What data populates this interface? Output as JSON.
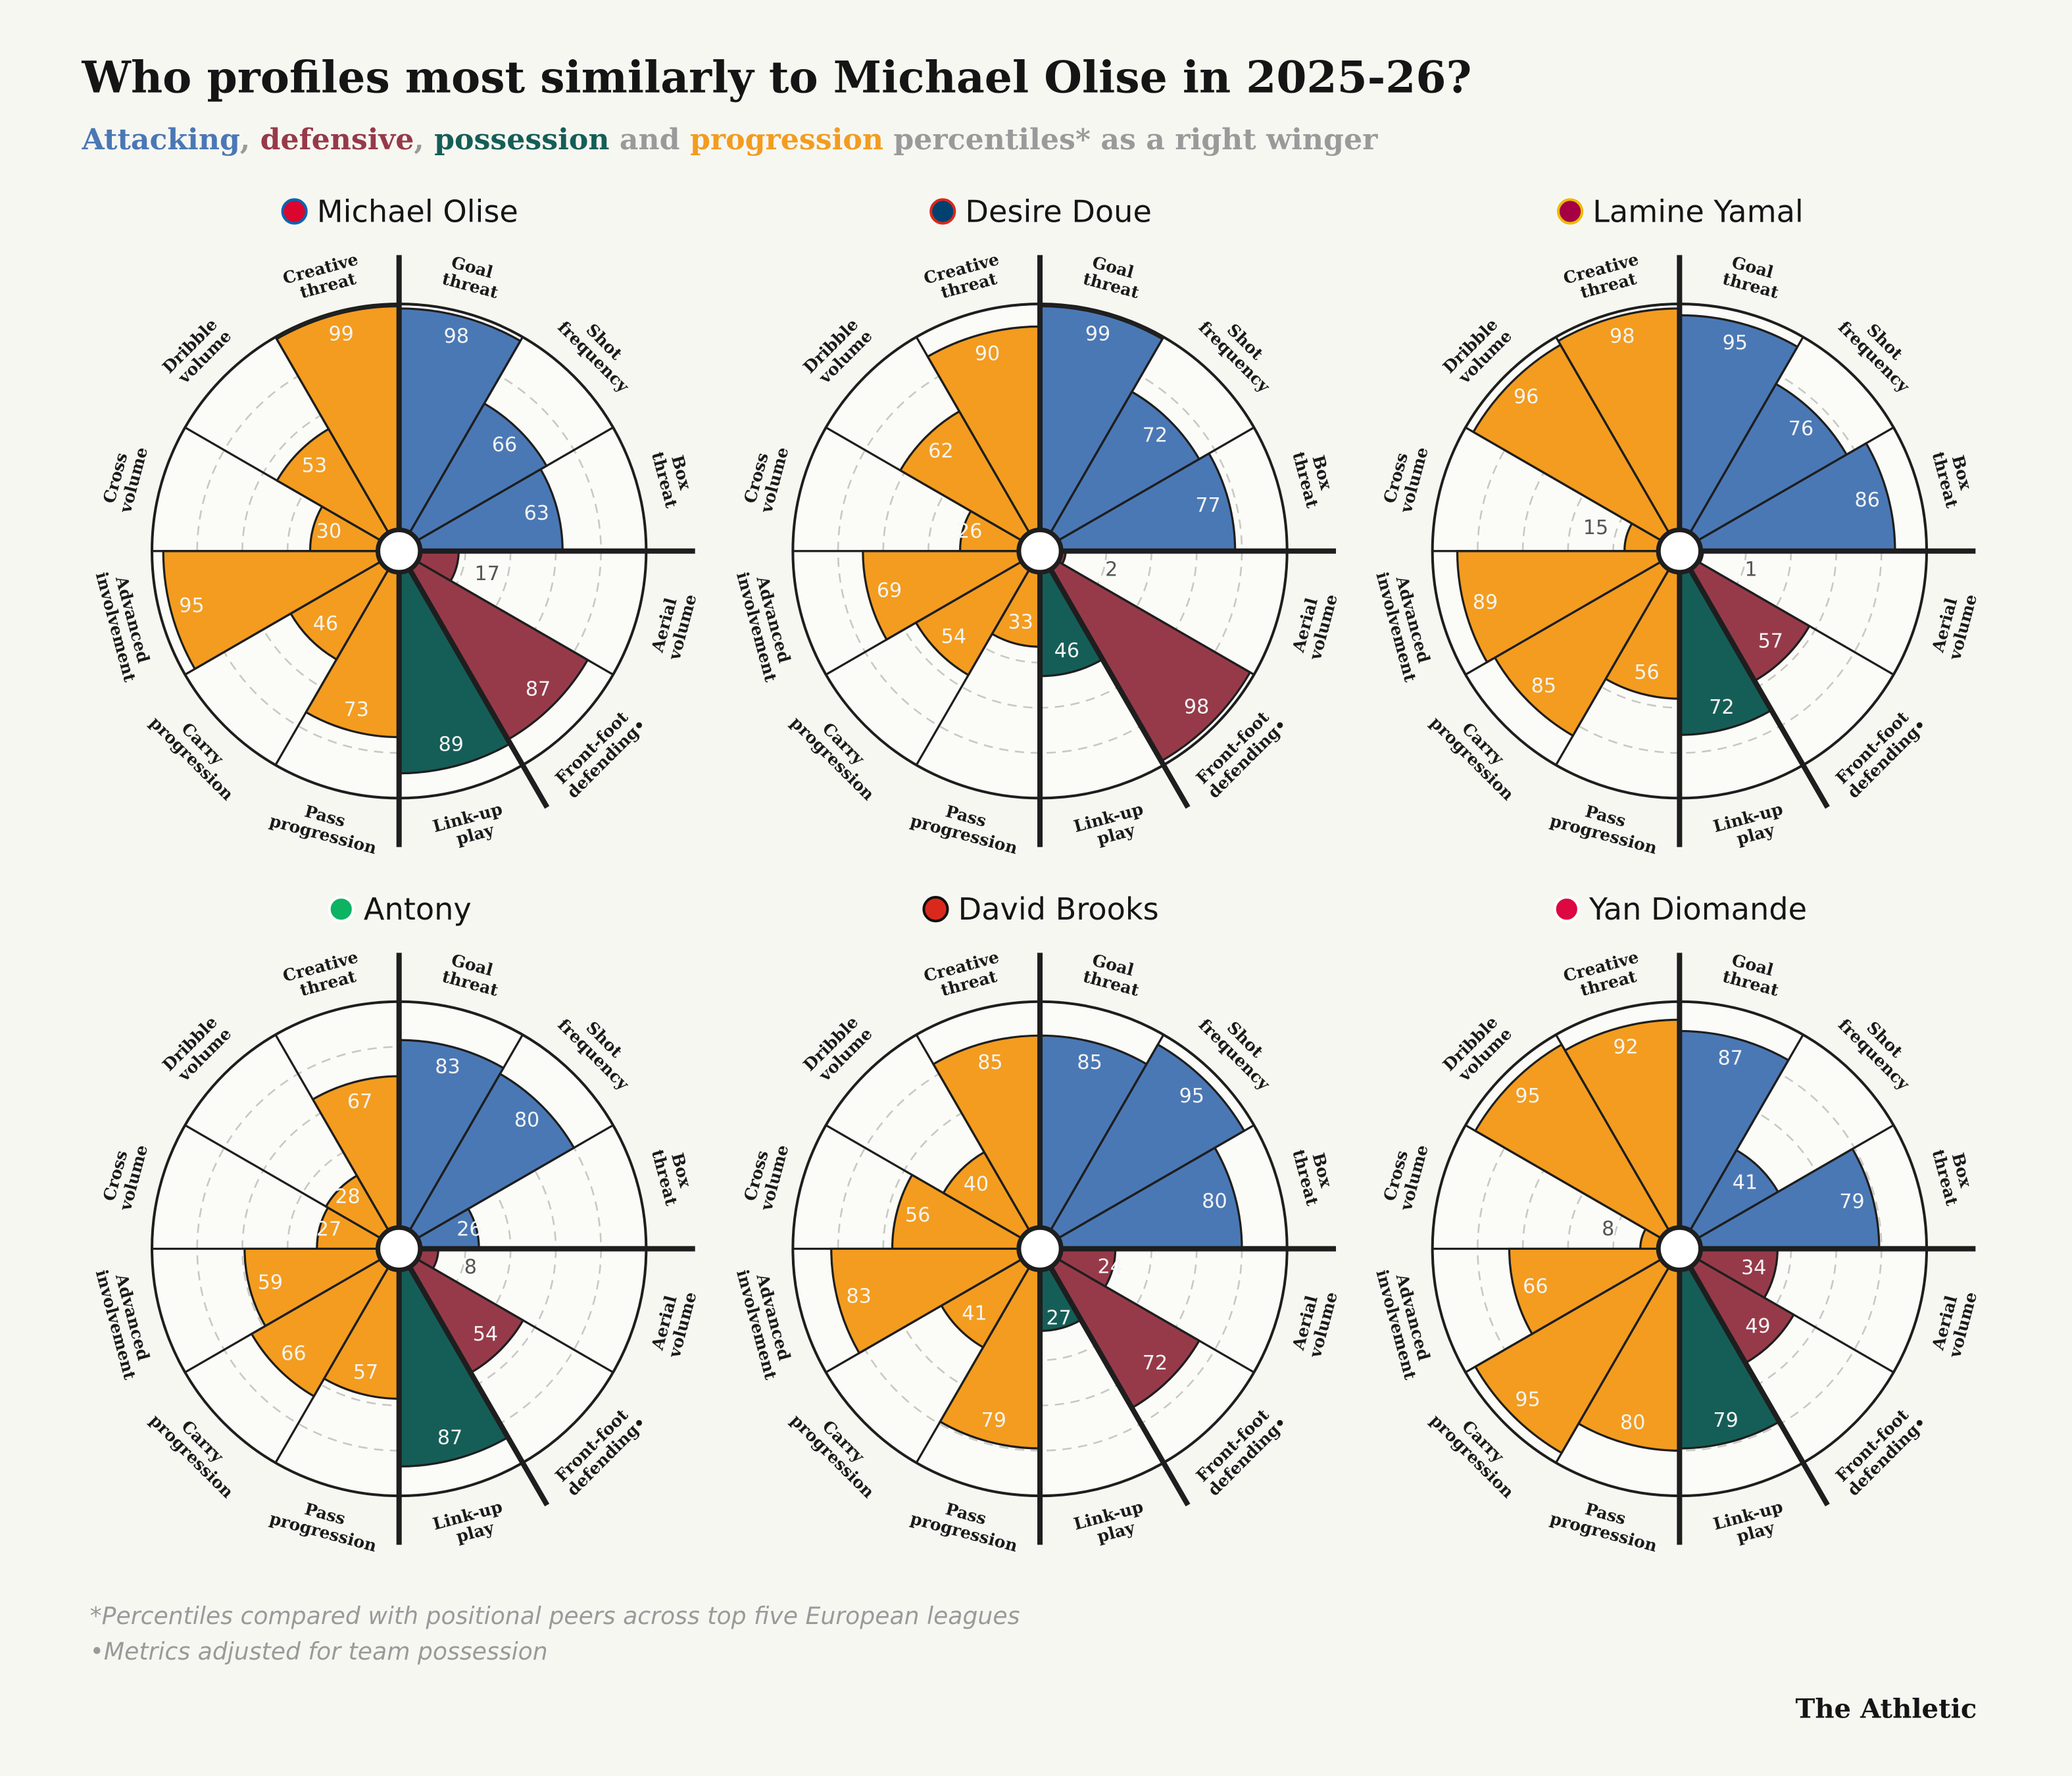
{
  "title": "Who profiles most similarly to Michael Olise in 2025-26?",
  "subtitle": [
    {
      "text": "Attacking",
      "color": "#4a78b5"
    },
    {
      "text": ", ",
      "color": "#9a9a9a"
    },
    {
      "text": "defensive",
      "color": "#963a4a"
    },
    {
      "text": ", ",
      "color": "#9a9a9a"
    },
    {
      "text": "possession",
      "color": "#155e57"
    },
    {
      "text": " and ",
      "color": "#9a9a9a"
    },
    {
      "text": "progression",
      "color": "#f39c1f"
    },
    {
      "text": " percentiles* as a right winger",
      "color": "#9a9a9a"
    }
  ],
  "footnotes": [
    "*Percentiles compared with positional peers across top five European leagues",
    "•Metrics adjusted for team possession"
  ],
  "source": "The Athletic",
  "chart_data": [
    {
      "type": "pizza",
      "title": "Michael Olise",
      "categories": [
        "Goal threat",
        "Shot frequency",
        "Box threat",
        "Aerial volume",
        "Front-foot defending•",
        "Link-up play",
        "Pass progression",
        "Carry progression",
        "Advanced involvement",
        "Cross volume",
        "Dribble volume",
        "Creative threat"
      ],
      "values": [
        98,
        66,
        63,
        17,
        87,
        89,
        73,
        46,
        95,
        30,
        53,
        99
      ],
      "colors": [
        "#4a78b5",
        "#4a78b5",
        "#4a78b5",
        "#963a4a",
        "#963a4a",
        "#155e57",
        "#f39c1f",
        "#f39c1f",
        "#f39c1f",
        "#f39c1f",
        "#f39c1f",
        "#f39c1f"
      ],
      "rlim": [
        0,
        100
      ],
      "rticks": [
        20,
        40,
        60,
        80
      ],
      "grid": true
    },
    {
      "type": "pizza",
      "title": "Desire Doue",
      "categories": [
        "Goal threat",
        "Shot frequency",
        "Box threat",
        "Aerial volume",
        "Front-foot defending•",
        "Link-up play",
        "Pass progression",
        "Carry progression",
        "Advanced involvement",
        "Cross volume",
        "Dribble volume",
        "Creative threat"
      ],
      "values": [
        99,
        72,
        77,
        2,
        98,
        46,
        33,
        54,
        69,
        26,
        62,
        90
      ],
      "colors": [
        "#4a78b5",
        "#4a78b5",
        "#4a78b5",
        "#963a4a",
        "#963a4a",
        "#155e57",
        "#f39c1f",
        "#f39c1f",
        "#f39c1f",
        "#f39c1f",
        "#f39c1f",
        "#f39c1f"
      ],
      "rlim": [
        0,
        100
      ],
      "rticks": [
        20,
        40,
        60,
        80
      ],
      "grid": true
    },
    {
      "type": "pizza",
      "title": "Lamine Yamal",
      "categories": [
        "Goal threat",
        "Shot frequency",
        "Box threat",
        "Aerial volume",
        "Front-foot defending•",
        "Link-up play",
        "Pass progression",
        "Carry progression",
        "Advanced involvement",
        "Cross volume",
        "Dribble volume",
        "Creative threat"
      ],
      "values": [
        95,
        76,
        86,
        1,
        57,
        72,
        56,
        85,
        89,
        15,
        96,
        98
      ],
      "colors": [
        "#4a78b5",
        "#4a78b5",
        "#4a78b5",
        "#963a4a",
        "#963a4a",
        "#155e57",
        "#f39c1f",
        "#f39c1f",
        "#f39c1f",
        "#f39c1f",
        "#f39c1f",
        "#f39c1f"
      ],
      "rlim": [
        0,
        100
      ],
      "rticks": [
        20,
        40,
        60,
        80
      ],
      "grid": true
    },
    {
      "type": "pizza",
      "title": "Antony",
      "categories": [
        "Goal threat",
        "Shot frequency",
        "Box threat",
        "Aerial volume",
        "Front-foot defending•",
        "Link-up play",
        "Pass progression",
        "Carry progression",
        "Advanced involvement",
        "Cross volume",
        "Dribble volume",
        "Creative threat"
      ],
      "values": [
        83,
        80,
        26,
        8,
        54,
        87,
        57,
        66,
        59,
        27,
        28,
        67
      ],
      "colors": [
        "#4a78b5",
        "#4a78b5",
        "#4a78b5",
        "#963a4a",
        "#963a4a",
        "#155e57",
        "#f39c1f",
        "#f39c1f",
        "#f39c1f",
        "#f39c1f",
        "#f39c1f",
        "#f39c1f"
      ],
      "rlim": [
        0,
        100
      ],
      "rticks": [
        20,
        40,
        60,
        80
      ],
      "grid": true
    },
    {
      "type": "pizza",
      "title": "David Brooks",
      "categories": [
        "Goal threat",
        "Shot frequency",
        "Box threat",
        "Aerial volume",
        "Front-foot defending•",
        "Link-up play",
        "Pass progression",
        "Carry progression",
        "Advanced involvement",
        "Cross volume",
        "Dribble volume",
        "Creative threat"
      ],
      "values": [
        85,
        95,
        80,
        24,
        72,
        27,
        79,
        41,
        83,
        56,
        40,
        85
      ],
      "colors": [
        "#4a78b5",
        "#4a78b5",
        "#4a78b5",
        "#963a4a",
        "#963a4a",
        "#155e57",
        "#f39c1f",
        "#f39c1f",
        "#f39c1f",
        "#f39c1f",
        "#f39c1f",
        "#f39c1f"
      ],
      "rlim": [
        0,
        100
      ],
      "rticks": [
        20,
        40,
        60,
        80
      ],
      "grid": true
    },
    {
      "type": "pizza",
      "title": "Yan Diomande",
      "categories": [
        "Goal threat",
        "Shot frequency",
        "Box threat",
        "Aerial volume",
        "Front-foot defending•",
        "Link-up play",
        "Pass progression",
        "Carry progression",
        "Advanced involvement",
        "Cross volume",
        "Dribble volume",
        "Creative threat"
      ],
      "values": [
        87,
        41,
        79,
        34,
        49,
        79,
        80,
        95,
        66,
        8,
        95,
        92
      ],
      "colors": [
        "#4a78b5",
        "#4a78b5",
        "#4a78b5",
        "#963a4a",
        "#963a4a",
        "#155e57",
        "#f39c1f",
        "#f39c1f",
        "#f39c1f",
        "#f39c1f",
        "#f39c1f",
        "#f39c1f"
      ],
      "rlim": [
        0,
        100
      ],
      "rticks": [
        20,
        40,
        60,
        80
      ],
      "grid": true
    }
  ]
}
